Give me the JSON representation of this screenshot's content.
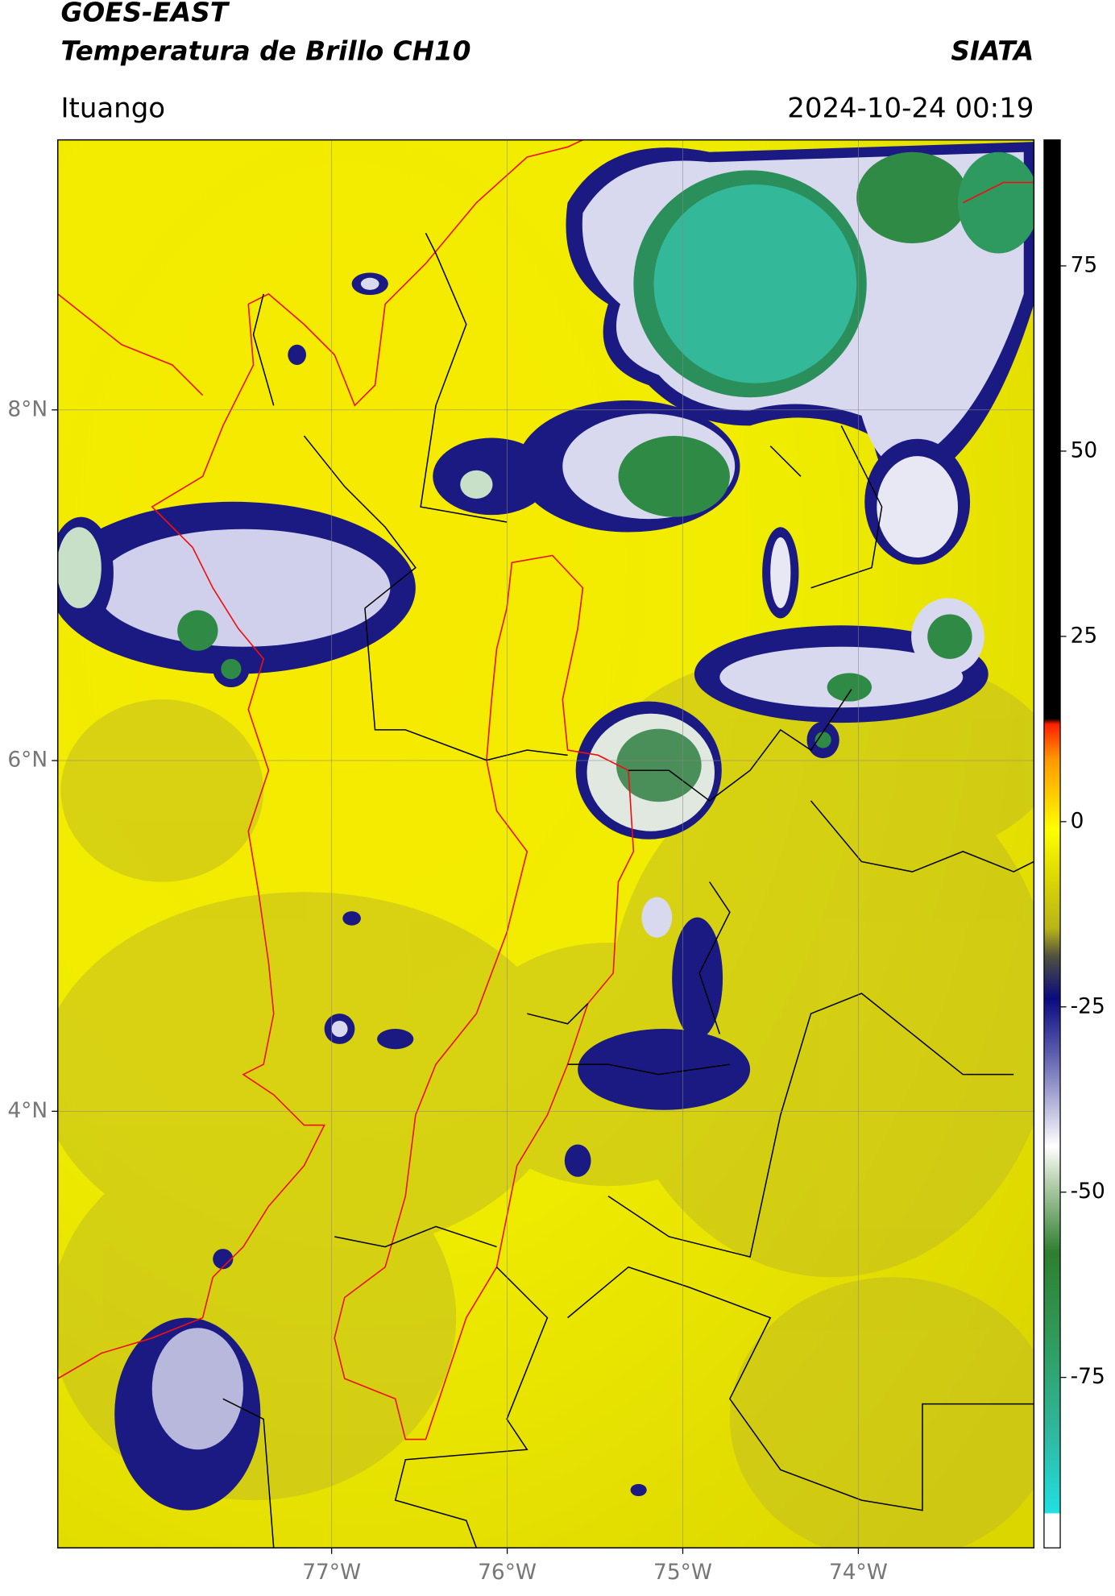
{
  "header": {
    "title": "GOES-EAST",
    "subtitle": "Temperatura de Brillo CH10",
    "brand": "SIATA",
    "location": "Ituango",
    "timestamp": "2024-10-24 00:19"
  },
  "map": {
    "lon_lim": [
      -78.56,
      -73.0
    ],
    "lat_lim": [
      1.51,
      9.54
    ],
    "lon_ticks": [
      {
        "value": -77,
        "label": "77°W"
      },
      {
        "value": -76,
        "label": "76°W"
      },
      {
        "value": -75,
        "label": "75°W"
      },
      {
        "value": -74,
        "label": "74°W"
      }
    ],
    "lat_ticks": [
      {
        "value": 8,
        "label": "8°N"
      },
      {
        "value": 6,
        "label": "6°N"
      },
      {
        "value": 4,
        "label": "4°N"
      }
    ],
    "grid": true
  },
  "colorbar": {
    "lim": [
      -98,
      92
    ],
    "ticks": [
      75,
      50,
      25,
      0,
      -25,
      -50,
      -75
    ]
  }
}
